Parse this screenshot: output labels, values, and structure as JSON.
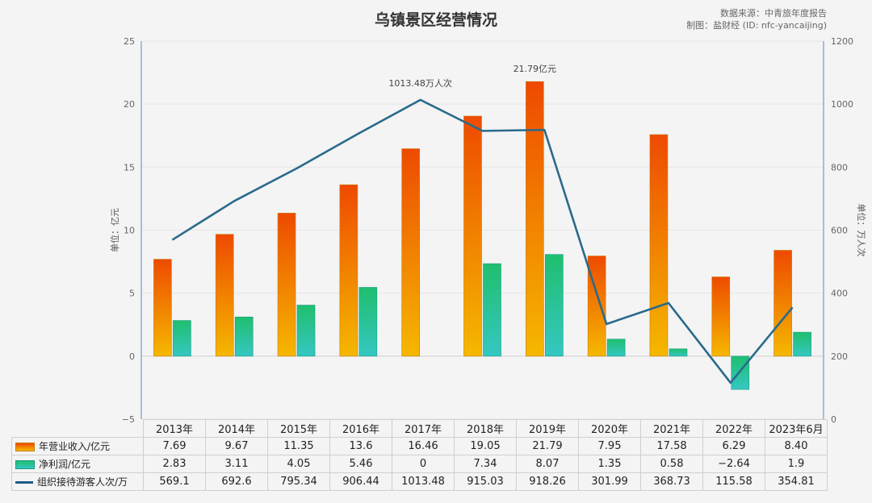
{
  "title": "乌镇景区经营情况",
  "source_note": "数据来源：中青旅年度报告",
  "maker_note": "制图：盐财经 (ID: nfc-yancaijing)",
  "colors": {
    "line": "#2a6a8c",
    "rev_top": "#ee4a00",
    "rev_bottom": "#f5b800",
    "prof_top": "#1fbf6e",
    "prof_bottom": "#35c7c2"
  },
  "chart_data": {
    "type": "bar",
    "categories": [
      "2013年",
      "2014年",
      "2015年",
      "2016年",
      "2017年",
      "2018年",
      "2019年",
      "2020年",
      "2021年",
      "2022年",
      "2023年6月"
    ],
    "left_ylabel": "单位：亿元",
    "right_ylabel": "单位：万人次",
    "left_ylim": [
      -5,
      25
    ],
    "left_ticks": [
      "25",
      "20",
      "15",
      "10",
      "5",
      "0",
      "−5"
    ],
    "right_ylim": [
      0,
      1200
    ],
    "right_ticks": [
      "1200",
      "1000",
      "800",
      "600",
      "400",
      "200",
      "0"
    ],
    "series": [
      {
        "name": "年营业收入/亿元",
        "type": "bar",
        "values": [
          7.69,
          9.67,
          11.35,
          13.6,
          16.46,
          19.05,
          21.79,
          7.95,
          17.58,
          6.29,
          8.4
        ],
        "labels": [
          "7.69",
          "9.67",
          "11.35",
          "13.6",
          "16.46",
          "19.05",
          "21.79",
          "7.95",
          "17.58",
          "6.29",
          "8.40"
        ]
      },
      {
        "name": "净利润/亿元",
        "type": "bar",
        "values": [
          2.83,
          3.11,
          4.05,
          5.46,
          0,
          7.34,
          8.07,
          1.35,
          0.58,
          -2.64,
          1.9
        ],
        "labels": [
          "2.83",
          "3.11",
          "4.05",
          "5.46",
          "0",
          "7.34",
          "8.07",
          "1.35",
          "0.58",
          "−2.64",
          "1.9"
        ]
      },
      {
        "name": "组织接待游客人次/万",
        "type": "line",
        "axis": "right",
        "values": [
          569.1,
          692.6,
          795.34,
          906.44,
          1013.48,
          915.03,
          918.26,
          301.99,
          368.73,
          115.58,
          354.81
        ],
        "labels": [
          "569.1",
          "692.6",
          "795.34",
          "906.44",
          "1013.48",
          "915.03",
          "918.26",
          "301.99",
          "368.73",
          "115.58",
          "354.81"
        ]
      }
    ],
    "annotations": [
      {
        "text": "1013.48万人次",
        "category_index": 4,
        "series": "line"
      },
      {
        "text": "21.79亿元",
        "category_index": 6,
        "series": "revenue"
      }
    ]
  }
}
